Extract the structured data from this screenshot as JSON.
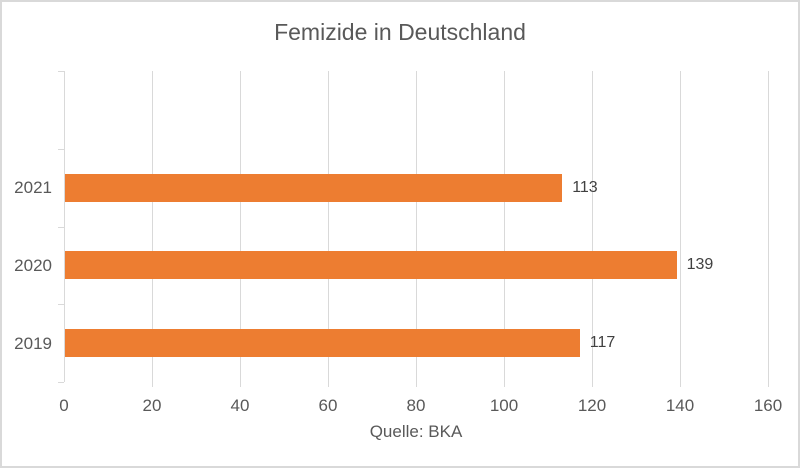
{
  "chart_data": {
    "type": "bar",
    "orientation": "horizontal",
    "title": "Femizide in Deutschland",
    "categories": [
      "2021",
      "2020",
      "2019"
    ],
    "values": [
      113,
      139,
      117
    ],
    "xlabel": "Quelle: BKA",
    "ylabel": "",
    "xlim": [
      0,
      160
    ],
    "xticks": [
      0,
      20,
      40,
      60,
      80,
      100,
      120,
      140,
      160
    ],
    "grid": true,
    "legend": false,
    "show_data_labels": true,
    "empty_top_band": true,
    "colors": {
      "bar": "#ED7D31",
      "gridline": "#D9D9D9",
      "border": "#D9D9D9",
      "title_text": "#595959",
      "axis_text": "#595959",
      "data_label_text": "#404040"
    }
  }
}
